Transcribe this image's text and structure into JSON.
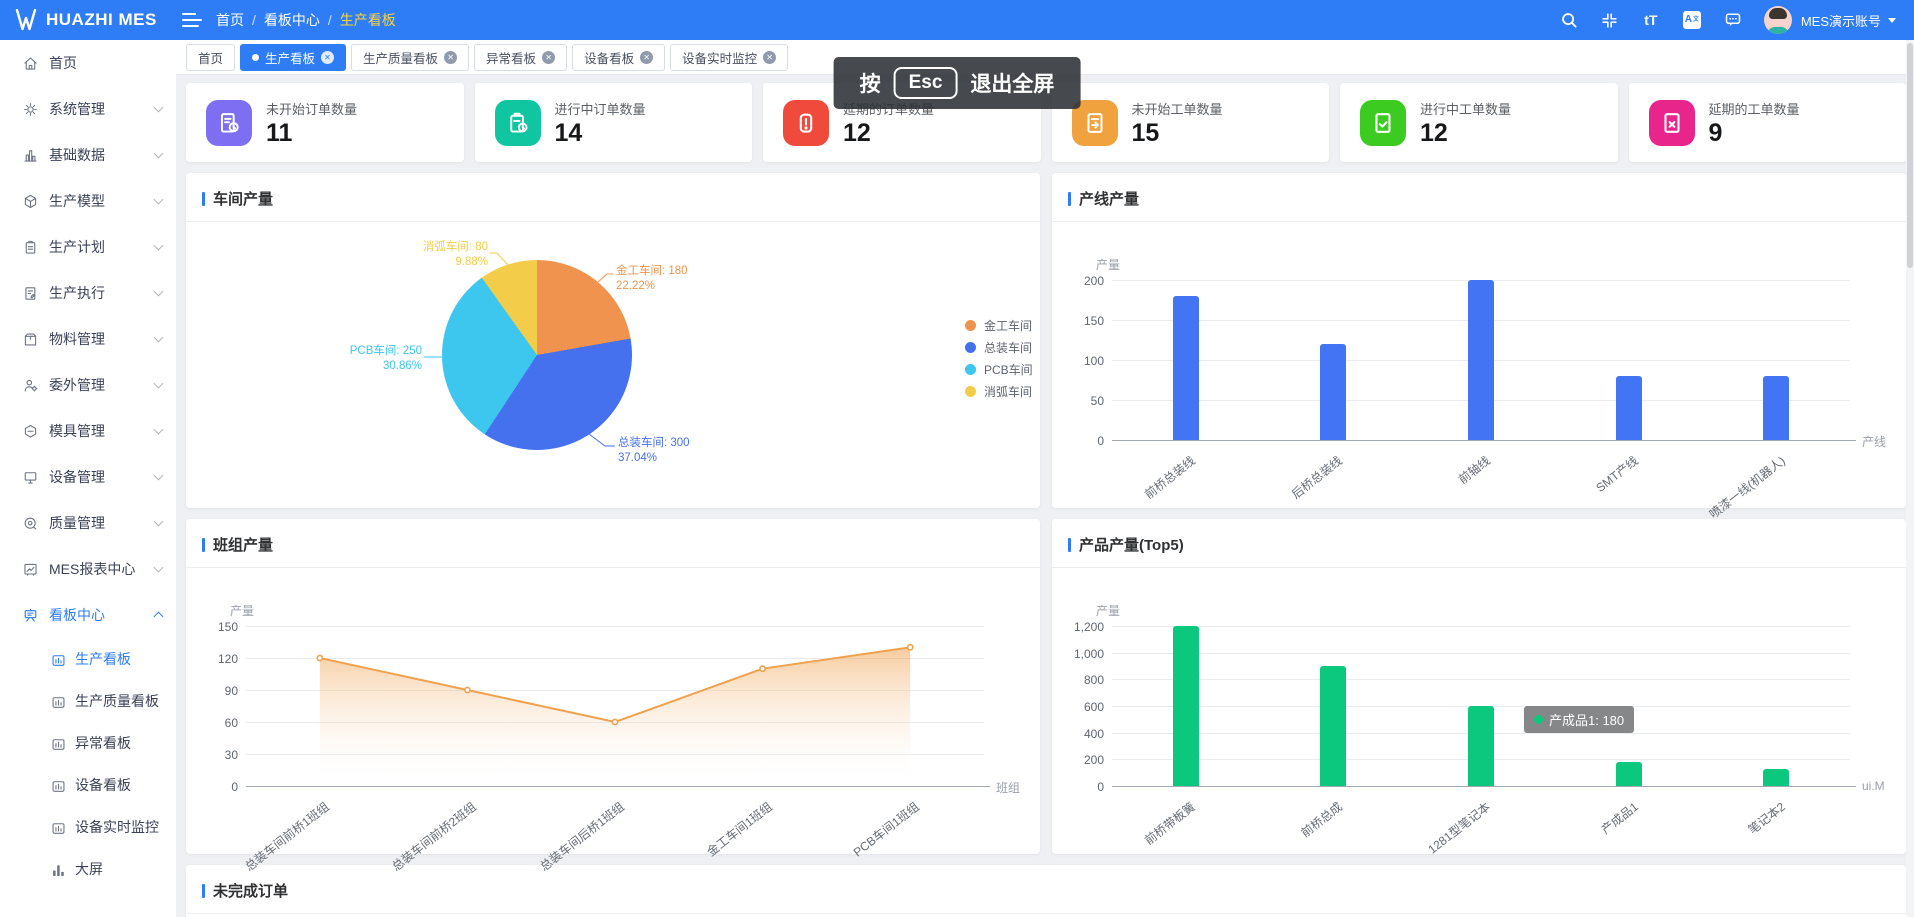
{
  "app": {
    "logo_text": "HUAZHI MES"
  },
  "header": {
    "breadcrumb": [
      "首页",
      "看板中心",
      "生产看板"
    ],
    "breadcrumb_separator": "/",
    "icons": [
      "search-icon",
      "exit-fullscreen-icon",
      "font-size-icon",
      "translate-icon",
      "message-icon"
    ],
    "account": {
      "name": "MES演示账号"
    }
  },
  "tabs": [
    {
      "label": "首页",
      "active": false,
      "closable": false
    },
    {
      "label": "生产看板",
      "active": true,
      "closable": true
    },
    {
      "label": "生产质量看板",
      "active": false,
      "closable": true
    },
    {
      "label": "异常看板",
      "active": false,
      "closable": true
    },
    {
      "label": "设备看板",
      "active": false,
      "closable": true
    },
    {
      "label": "设备实时监控",
      "active": false,
      "closable": true
    }
  ],
  "toast": {
    "press": "按",
    "key": "Esc",
    "action": "退出全屏"
  },
  "sidebar": {
    "items": [
      {
        "label": "首页",
        "icon": "home-icon"
      },
      {
        "label": "系统管理",
        "icon": "gear-icon",
        "chevron": "down"
      },
      {
        "label": "基础数据",
        "icon": "database-icon",
        "chevron": "down"
      },
      {
        "label": "生产模型",
        "icon": "model-icon",
        "chevron": "down"
      },
      {
        "label": "生产计划",
        "icon": "plan-icon",
        "chevron": "down"
      },
      {
        "label": "生产执行",
        "icon": "execute-icon",
        "chevron": "down"
      },
      {
        "label": "物料管理",
        "icon": "material-icon",
        "chevron": "down"
      },
      {
        "label": "委外管理",
        "icon": "outsource-icon",
        "chevron": "down"
      },
      {
        "label": "模具管理",
        "icon": "mold-icon",
        "chevron": "down"
      },
      {
        "label": "设备管理",
        "icon": "equipment-icon",
        "chevron": "down"
      },
      {
        "label": "质量管理",
        "icon": "quality-icon",
        "chevron": "down"
      },
      {
        "label": "MES报表中心",
        "icon": "report-icon",
        "chevron": "down"
      },
      {
        "label": "看板中心",
        "icon": "board-icon",
        "chevron": "up",
        "active": true,
        "children": [
          {
            "label": "生产看板",
            "icon": "mini-chart-icon",
            "active": true
          },
          {
            "label": "生产质量看板",
            "icon": "mini-chart-icon"
          },
          {
            "label": "异常看板",
            "icon": "mini-chart-icon"
          },
          {
            "label": "设备看板",
            "icon": "mini-chart-icon"
          },
          {
            "label": "设备实时监控",
            "icon": "mini-chart-icon"
          },
          {
            "label": "大屏",
            "icon": "screen-icon"
          }
        ]
      }
    ]
  },
  "stats": [
    {
      "label": "未开始订单数量",
      "value": "11",
      "color": "#7d6ef2",
      "icon": "order-pending-icon"
    },
    {
      "label": "进行中订单数量",
      "value": "14",
      "color": "#0fc6a0",
      "icon": "order-progress-icon"
    },
    {
      "label": "延期的订单数量",
      "value": "12",
      "color": "#f04a3c",
      "icon": "order-delayed-icon"
    },
    {
      "label": "未开始工单数量",
      "value": "15",
      "color": "#f0a23f",
      "icon": "workorder-pending-icon"
    },
    {
      "label": "进行中工单数量",
      "value": "12",
      "color": "#3ccb20",
      "icon": "workorder-progress-icon"
    },
    {
      "label": "延期的工单数量",
      "value": "9",
      "color": "#e7258b",
      "icon": "workorder-delayed-icon"
    }
  ],
  "sections": {
    "orders_title": "未完成订单"
  },
  "chart_data": [
    {
      "id": "workshop",
      "type": "pie",
      "title": "车间产量",
      "slices": [
        {
          "name": "金工车间",
          "value": 180,
          "percent": "22.22%",
          "color": "#f0934e"
        },
        {
          "name": "总装车间",
          "value": 300,
          "percent": "37.04%",
          "color": "#4570ee"
        },
        {
          "name": "PCB车间",
          "value": 250,
          "percent": "30.86%",
          "color": "#3dc6ee"
        },
        {
          "name": "消弧车间",
          "value": 80,
          "percent": "9.88%",
          "color": "#f3cd49"
        }
      ],
      "legend": [
        "金工车间",
        "总装车间",
        "PCB车间",
        "消弧车间"
      ],
      "legend_position": "right"
    },
    {
      "id": "line-output",
      "type": "bar",
      "title": "产线产量",
      "ylabel": "产量",
      "xlabel": "产线",
      "categories": [
        "前桥总装线",
        "后桥总装线",
        "前轴线",
        "SMT产线",
        "喷漆一线(机器人)"
      ],
      "values": [
        180,
        120,
        200,
        80,
        80
      ],
      "yticks": [
        0,
        50,
        100,
        150,
        200
      ],
      "ylim": [
        0,
        200
      ],
      "bar_color": "#4374f4",
      "grid": true
    },
    {
      "id": "team-output",
      "type": "area",
      "title": "班组产量",
      "ylabel": "产量",
      "xlabel": "班组",
      "categories": [
        "总装车间前桥1班组",
        "总装车间前桥2班组",
        "总装车间后桥1班组",
        "金工车间1班组",
        "PCB车间1班组"
      ],
      "values": [
        120,
        90,
        60,
        110,
        130
      ],
      "yticks": [
        0,
        30,
        60,
        90,
        120,
        150
      ],
      "ylim": [
        0,
        150
      ],
      "line_color": "#f0a14e",
      "grid": true
    },
    {
      "id": "product-output",
      "type": "bar",
      "title": "产品产量(Top5)",
      "ylabel": "产量",
      "xlabel": "ui.M",
      "categories": [
        "前桥带板簧",
        "前桥总成",
        "1281型笔记本",
        "产成品1",
        "笔记本2"
      ],
      "values": [
        1200,
        900,
        600,
        180,
        130
      ],
      "yticks": [
        0,
        200,
        400,
        600,
        800,
        1000,
        1200
      ],
      "ytick_labels": [
        "0",
        "200",
        "400",
        "600",
        "800",
        "1,000",
        "1,200"
      ],
      "ylim": [
        0,
        1200
      ],
      "bar_color": "#0cc87e",
      "grid": true,
      "tooltip": {
        "text": "产成品1: 180",
        "dot_color": "#0cc87e"
      }
    }
  ]
}
